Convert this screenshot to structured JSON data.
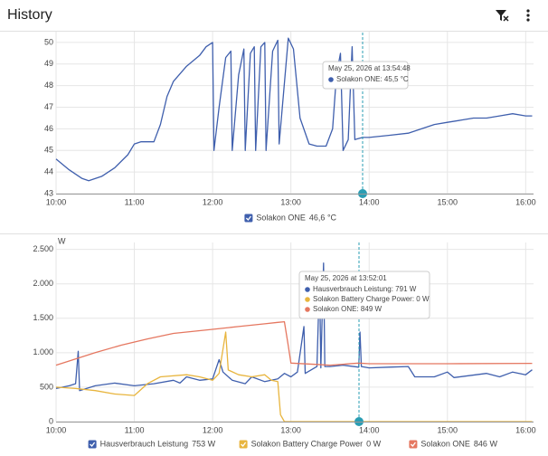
{
  "header": {
    "title": "History"
  },
  "chart_data": [
    {
      "type": "line",
      "xlim": [
        10,
        16.1
      ],
      "xticks": [
        {
          "value": 10,
          "label": "10:00"
        },
        {
          "value": 11,
          "label": "11:00"
        },
        {
          "value": 12,
          "label": "12:00"
        },
        {
          "value": 13,
          "label": "13:00"
        },
        {
          "value": 14,
          "label": "14:00"
        },
        {
          "value": 15,
          "label": "15:00"
        },
        {
          "value": 16,
          "label": "16:00"
        }
      ],
      "ylim": [
        43,
        50.5
      ],
      "yticks": [
        43,
        44,
        45,
        46,
        47,
        48,
        49,
        50
      ],
      "grid": true,
      "series": [
        {
          "name": "Solakon ONE",
          "color": "#3f5fad",
          "current": "46,6 °C",
          "x": [
            10,
            10.167,
            10.333,
            10.417,
            10.583,
            10.75,
            10.917,
            11,
            11.083,
            11.25,
            11.333,
            11.417,
            11.5,
            11.667,
            11.833,
            11.917,
            12,
            12.017,
            12.083,
            12.167,
            12.233,
            12.25,
            12.333,
            12.4,
            12.417,
            12.483,
            12.533,
            12.55,
            12.617,
            12.667,
            12.683,
            12.767,
            12.833,
            12.85,
            12.967,
            13.033,
            13.117,
            13.233,
            13.333,
            13.45,
            13.533,
            13.583,
            13.633,
            13.667,
            13.733,
            13.783,
            13.817,
            13.917,
            14,
            14.25,
            14.5,
            14.667,
            14.833,
            15,
            15.167,
            15.333,
            15.5,
            15.667,
            15.833,
            16,
            16.083
          ],
          "values": [
            44.6,
            44.1,
            43.7,
            43.6,
            43.8,
            44.2,
            44.8,
            45.3,
            45.4,
            45.4,
            46.2,
            47.5,
            48.2,
            48.9,
            49.4,
            49.8,
            50,
            45,
            47,
            49.3,
            49.6,
            45,
            48.5,
            49.7,
            45,
            49.5,
            49.8,
            45,
            49.8,
            50,
            45,
            49.6,
            50.1,
            45.3,
            50.2,
            49.7,
            46.5,
            45.3,
            45.2,
            45.2,
            46,
            48.5,
            49.5,
            45,
            45.5,
            49.8,
            45.5,
            45.6,
            45.6,
            45.7,
            45.8,
            46,
            46.2,
            46.3,
            46.4,
            46.5,
            46.5,
            46.6,
            46.7,
            46.6,
            46.6
          ]
        }
      ],
      "tooltip": {
        "title": "May 25, 2026 at 13:54:48",
        "lines": [
          "Solakon ONE: 45,5 °C"
        ]
      }
    },
    {
      "type": "line",
      "y_label": "W",
      "xlim": [
        10,
        16.1
      ],
      "xticks": [
        {
          "value": 10,
          "label": "10:00"
        },
        {
          "value": 11,
          "label": "11:00"
        },
        {
          "value": 12,
          "label": "12:00"
        },
        {
          "value": 13,
          "label": "13:00"
        },
        {
          "value": 14,
          "label": "14:00"
        },
        {
          "value": 15,
          "label": "15:00"
        },
        {
          "value": 16,
          "label": "16:00"
        }
      ],
      "ylim": [
        0,
        2600
      ],
      "yticks": [
        0,
        500,
        {
          "value": 1000,
          "label": "1.000"
        },
        {
          "value": 1500,
          "label": "1.500"
        },
        {
          "value": 2000,
          "label": "2.000"
        },
        {
          "value": 2500,
          "label": "2.500"
        }
      ],
      "grid": true,
      "series": [
        {
          "name": "Hausverbrauch Leistung",
          "color": "#3f5fad",
          "current": "753 W",
          "x": [
            10,
            10.167,
            10.25,
            10.283,
            10.3,
            10.5,
            10.75,
            11,
            11.25,
            11.5,
            11.583,
            11.667,
            11.833,
            12,
            12.083,
            12.133,
            12.25,
            12.417,
            12.5,
            12.667,
            12.833,
            12.917,
            13,
            13.083,
            13.167,
            13.183,
            13.333,
            13.367,
            13.383,
            13.417,
            13.433,
            13.5,
            13.667,
            13.867,
            13.883,
            13.9,
            14,
            14.25,
            14.5,
            14.583,
            14.833,
            15,
            15.083,
            15.5,
            15.667,
            15.833,
            16,
            16.083
          ],
          "values": [
            480,
            520,
            550,
            1020,
            450,
            520,
            560,
            520,
            550,
            600,
            560,
            650,
            600,
            620,
            900,
            720,
            600,
            550,
            650,
            580,
            620,
            700,
            650,
            720,
            1380,
            700,
            800,
            2100,
            780,
            2300,
            800,
            800,
            820,
            791,
            1300,
            800,
            780,
            790,
            800,
            650,
            650,
            720,
            640,
            700,
            650,
            720,
            680,
            753
          ]
        },
        {
          "name": "Solakon Battery Charge Power",
          "color": "#e8b53e",
          "current": "0 W",
          "x": [
            10,
            10.25,
            10.5,
            10.75,
            11,
            11.167,
            11.333,
            11.667,
            11.833,
            12,
            12.083,
            12.167,
            12.2,
            12.333,
            12.5,
            12.667,
            12.75,
            12.833,
            12.867,
            12.917,
            13.5,
            14,
            15,
            16.083
          ],
          "values": [
            500,
            480,
            450,
            400,
            380,
            550,
            650,
            680,
            650,
            600,
            700,
            1300,
            750,
            680,
            650,
            680,
            600,
            580,
            100,
            0,
            0,
            0,
            0,
            0
          ]
        },
        {
          "name": "Solakon ONE",
          "color": "#e57760",
          "current": "846 W",
          "x": [
            10,
            10.167,
            10.5,
            10.833,
            11.167,
            11.5,
            11.833,
            12,
            12.333,
            12.667,
            12.833,
            12.917,
            12.967,
            13,
            13.333,
            13.5,
            13.867,
            14,
            15,
            16.083
          ],
          "values": [
            820,
            880,
            1000,
            1110,
            1200,
            1280,
            1320,
            1340,
            1380,
            1420,
            1440,
            1450,
            1100,
            850,
            830,
            820,
            849,
            840,
            840,
            846
          ]
        }
      ],
      "tooltip": {
        "title": "May 25, 2026 at 13:52:01",
        "lines": [
          "Hausverbrauch Leistung: 791 W",
          "Solakon Battery Charge Power: 0 W",
          "Solakon ONE: 849 W"
        ]
      }
    }
  ]
}
